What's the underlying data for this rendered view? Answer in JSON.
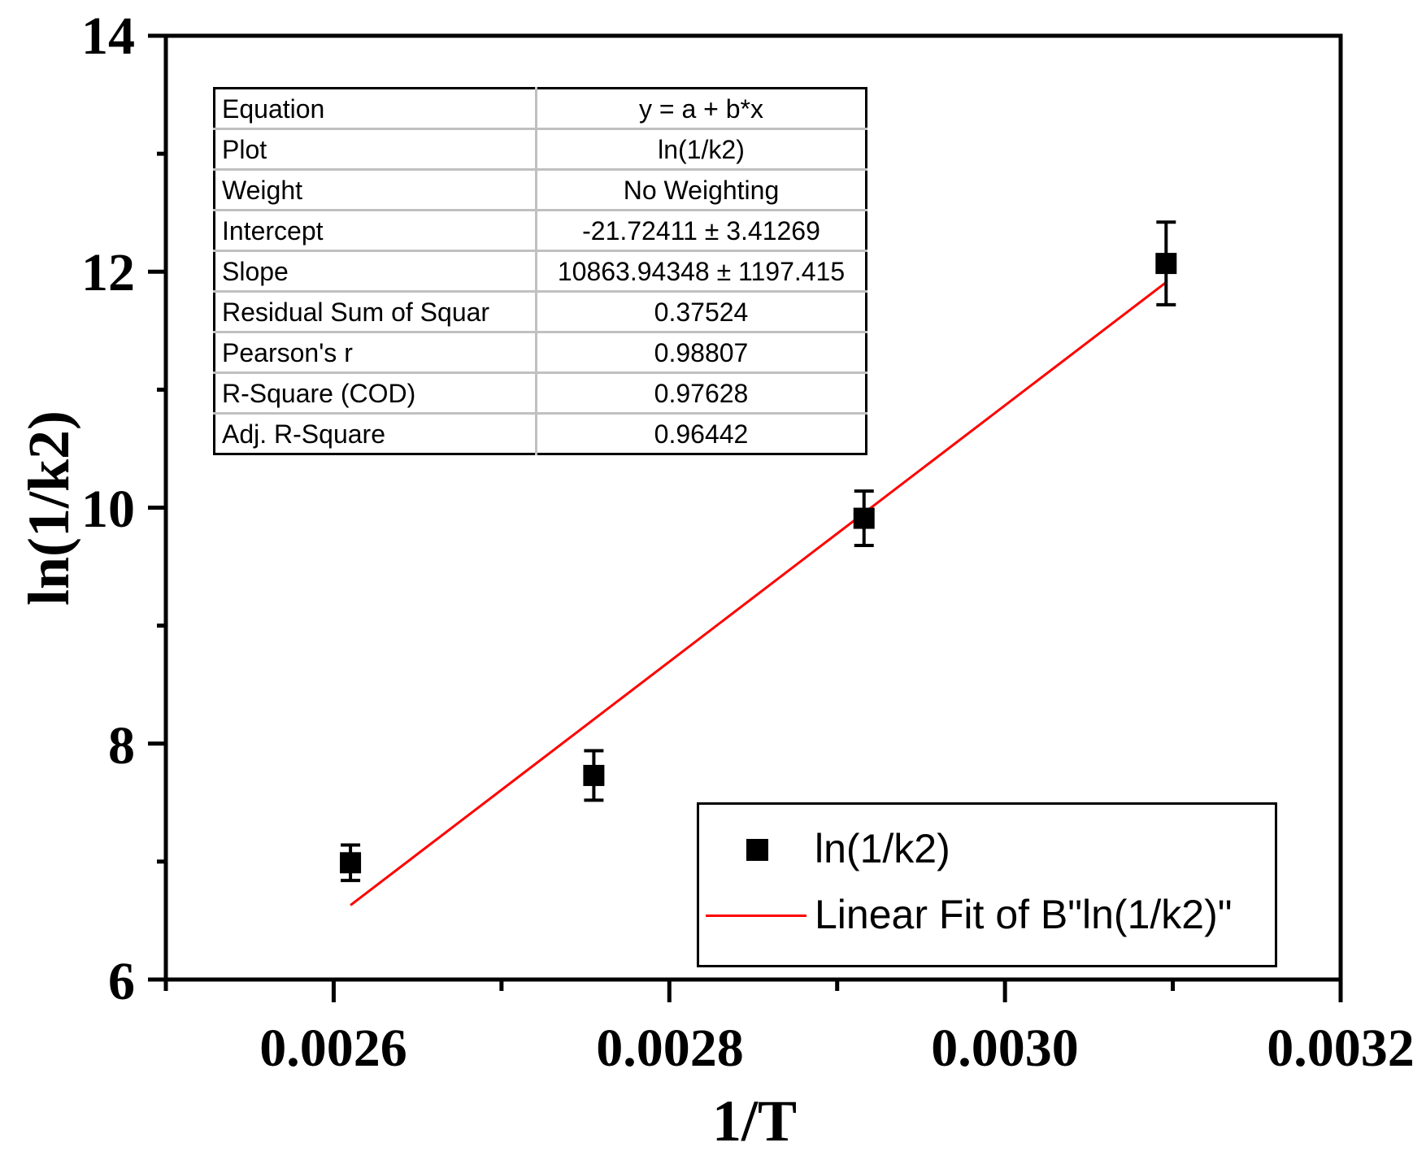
{
  "chart_data": {
    "type": "scatter",
    "title": "",
    "xlabel": "1/T",
    "ylabel": "ln(1/k2)",
    "xlim": [
      0.0025,
      0.0032
    ],
    "ylim": [
      6,
      14
    ],
    "x_ticks": [
      "0.0026",
      "0.0028",
      "0.0030",
      "0.0032"
    ],
    "x_tick_values": [
      0.0026,
      0.0028,
      0.003,
      0.0032
    ],
    "y_ticks": [
      "6",
      "8",
      "10",
      "12",
      "14"
    ],
    "y_tick_values": [
      6,
      8,
      10,
      12,
      14
    ],
    "grid": false,
    "legend_position": "lower right",
    "series": [
      {
        "name": "ln(1/k2)",
        "kind": "scatter",
        "marker": "square",
        "color": "#000000",
        "x": [
          0.00261,
          0.002755,
          0.002916,
          0.003096
        ],
        "y": [
          6.99,
          7.73,
          9.91,
          12.07
        ],
        "y_error": [
          0.15,
          0.21,
          0.23,
          0.35
        ]
      },
      {
        "name": "Linear Fit of B\"ln(1/k2)\"",
        "kind": "line",
        "color": "#ff0000",
        "intercept": -21.72411,
        "slope": 10863.94348,
        "x": [
          0.00261,
          0.003096
        ],
        "y": [
          6.63,
          11.91
        ]
      }
    ],
    "fit_stats": {
      "equation": "y = a + b*x",
      "intercept": -21.72411,
      "intercept_error": 3.41269,
      "slope": 10863.94348,
      "slope_error": 1197.415,
      "residual_sum_of_squares": 0.37524,
      "pearsons_r": 0.98807,
      "r_square_cod": 0.97628,
      "adj_r_square": 0.96442
    }
  },
  "axes": {
    "x_title": "1/T",
    "y_title": "ln(1/k2)",
    "x_tick_labels": [
      "0.0026",
      "0.0028",
      "0.0030",
      "0.0032"
    ],
    "y_tick_labels": [
      "6",
      "8",
      "10",
      "12",
      "14"
    ]
  },
  "stats_table": {
    "rows": [
      {
        "label": "Equation",
        "value": "y = a + b*x"
      },
      {
        "label": "Plot",
        "value": "ln(1/k2)"
      },
      {
        "label": "Weight",
        "value": "No Weighting"
      },
      {
        "label": "Intercept",
        "value": "-21.72411 ± 3.41269"
      },
      {
        "label": "Slope",
        "value": "10863.94348 ± 1197.415"
      },
      {
        "label": "Residual Sum of Squar",
        "value": "0.37524"
      },
      {
        "label": "Pearson's r",
        "value": "0.98807"
      },
      {
        "label": "R-Square (COD)",
        "value": "0.97628"
      },
      {
        "label": "Adj. R-Square",
        "value": "0.96442"
      }
    ]
  },
  "legend": {
    "items": [
      {
        "label": "ln(1/k2)",
        "symbol": "black-square-marker"
      },
      {
        "label": "Linear Fit of B\"ln(1/k2)\"",
        "symbol": "red-line"
      }
    ]
  },
  "colors": {
    "data": "#000000",
    "fit_line": "#ff0000",
    "table_grid": "#c0c0c0"
  }
}
